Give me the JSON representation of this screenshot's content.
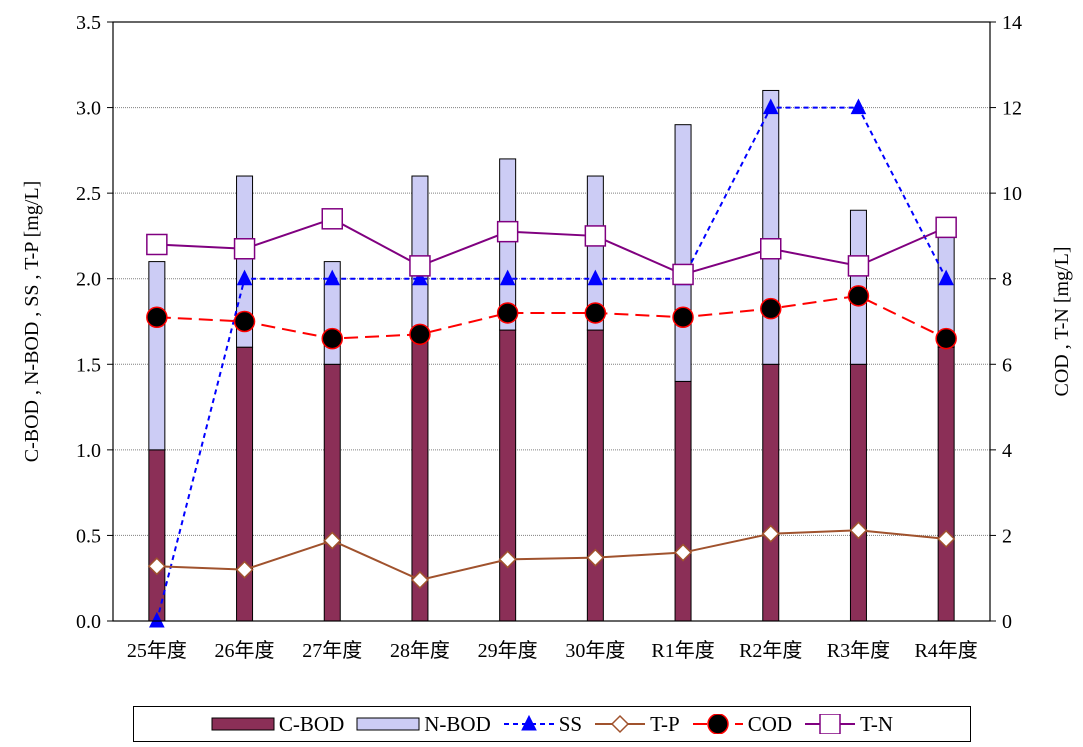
{
  "chart_data": {
    "type": "bar",
    "categories": [
      "25年度",
      "26年度",
      "27年度",
      "28年度",
      "29年度",
      "30年度",
      "R1年度",
      "R2年度",
      "R3年度",
      "R4年度"
    ],
    "left_axis": {
      "label": "C-BOD , N-BOD , SS , T-P [mg/L]",
      "ylim": [
        0,
        3.5
      ],
      "ticks": [
        "0.0",
        "0.5",
        "1.0",
        "1.5",
        "2.0",
        "2.5",
        "3.0",
        "3.5"
      ]
    },
    "right_axis": {
      "label": "COD , T-N [mg/L]",
      "ylim": [
        0,
        14
      ],
      "ticks": [
        "0",
        "2",
        "4",
        "6",
        "8",
        "10",
        "12",
        "14"
      ]
    },
    "grid": true,
    "legend_position": "bottom",
    "series": [
      {
        "name": "C-BOD",
        "kind": "stacked-bar",
        "axis": "left",
        "color": "#8B2F57",
        "values": [
          1.0,
          1.6,
          1.5,
          1.7,
          1.7,
          1.7,
          1.4,
          1.5,
          1.5,
          1.6
        ]
      },
      {
        "name": "N-BOD",
        "kind": "stacked-bar",
        "axis": "left",
        "color": "#CCCCF5",
        "values": [
          1.1,
          1.0,
          0.6,
          0.9,
          1.0,
          0.9,
          1.5,
          1.6,
          0.9,
          0.7
        ]
      },
      {
        "name": "SS",
        "kind": "line",
        "axis": "left",
        "color": "#0000FF",
        "dash": "dotted",
        "marker": "triangle",
        "values": [
          0.0,
          2.0,
          2.0,
          2.0,
          2.0,
          2.0,
          2.0,
          3.0,
          3.0,
          2.0
        ]
      },
      {
        "name": "T-P",
        "kind": "line",
        "axis": "left",
        "color": "#A0522D",
        "dash": "solid",
        "marker": "diamond",
        "values": [
          0.32,
          0.3,
          0.47,
          0.24,
          0.36,
          0.37,
          0.4,
          0.51,
          0.53,
          0.48
        ]
      },
      {
        "name": "COD",
        "kind": "line",
        "axis": "right",
        "color": "#FF0000",
        "dash": "dashed",
        "marker": "circle",
        "values": [
          7.1,
          7.0,
          6.6,
          6.7,
          7.2,
          7.2,
          7.1,
          7.3,
          7.6,
          6.6
        ]
      },
      {
        "name": "T-N",
        "kind": "line",
        "axis": "right",
        "color": "#800080",
        "dash": "solid",
        "marker": "square",
        "values": [
          8.8,
          8.7,
          9.4,
          8.3,
          9.1,
          9.0,
          8.1,
          8.7,
          8.3,
          9.2
        ]
      }
    ]
  }
}
